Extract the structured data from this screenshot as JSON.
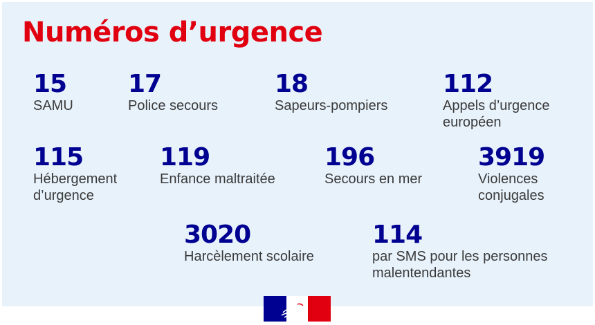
{
  "title": "Numéros d’urgence",
  "numbers": [
    {
      "number": "15",
      "label": "SAMU"
    },
    {
      "number": "17",
      "label": "Police secours"
    },
    {
      "number": "18",
      "label": "Sapeurs-pompiers"
    },
    {
      "number": "112",
      "label": "Appels d’urgence européen"
    },
    {
      "number": "115",
      "label": "Hébergement d’urgence"
    },
    {
      "number": "119",
      "label": "Enfance maltraitée"
    },
    {
      "number": "196",
      "label": "Secours en mer"
    },
    {
      "number": "3919",
      "label": "Violences conjugales"
    },
    {
      "number": "3020",
      "label": "Harcèlement scolaire"
    },
    {
      "number": "114",
      "label": "par SMS pour les personnes malentendantes"
    }
  ],
  "colors": {
    "title": "#e1000f",
    "number": "#000091",
    "label": "#3a3a3a",
    "panel_background": "#e8f2fb",
    "logo_blue": "#000091",
    "logo_red": "#e1000f"
  },
  "logo": {
    "icon": "marianne-logo-icon"
  }
}
